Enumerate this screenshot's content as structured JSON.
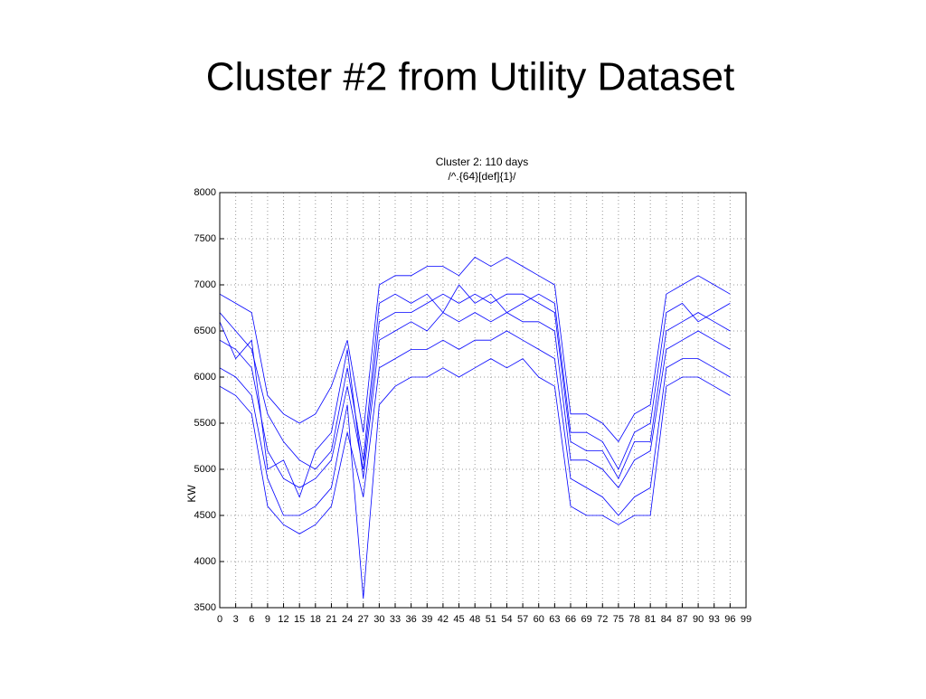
{
  "slide_title": "Cluster #2 from Utility Dataset",
  "chart_data": {
    "type": "line",
    "title": "Cluster 2: 110 days",
    "subtitle": "/^.{64}[def]{1}/",
    "y_label": "KW",
    "x": [
      0,
      3,
      6,
      9,
      12,
      15,
      18,
      21,
      24,
      27,
      30,
      33,
      36,
      39,
      42,
      45,
      48,
      51,
      54,
      57,
      60,
      63,
      66,
      69,
      72,
      75,
      78,
      81,
      84,
      87,
      90,
      93,
      96
    ],
    "xlim": [
      0,
      99
    ],
    "xticks": [
      0,
      3,
      6,
      9,
      12,
      15,
      18,
      21,
      24,
      27,
      30,
      33,
      36,
      39,
      42,
      45,
      48,
      51,
      54,
      57,
      60,
      63,
      66,
      69,
      72,
      75,
      78,
      81,
      84,
      87,
      90,
      93,
      96,
      99
    ],
    "ylim": [
      3500,
      8000
    ],
    "yticks": [
      3500,
      4000,
      4500,
      5000,
      5500,
      6000,
      6500,
      7000,
      7500,
      8000
    ],
    "grid": true,
    "series": [
      {
        "color": "#0000ff",
        "values": [
          6900,
          6800,
          6700,
          5800,
          5600,
          5500,
          5600,
          5900,
          6400,
          5400,
          7000,
          7100,
          7100,
          7200,
          7200,
          7100,
          7300,
          7200,
          7300,
          7200,
          7100,
          7000,
          5600,
          5600,
          5500,
          5300,
          5600,
          5700,
          6900,
          7000,
          7100,
          7000,
          6900
        ]
      },
      {
        "color": "#0000ff",
        "values": [
          6400,
          6300,
          6100,
          5200,
          4900,
          4800,
          4900,
          5100,
          5900,
          5000,
          6600,
          6700,
          6700,
          6800,
          6900,
          6800,
          6900,
          6800,
          6900,
          6900,
          6800,
          6700,
          5300,
          5200,
          5200,
          4900,
          5300,
          5300,
          6500,
          6600,
          6700,
          6600,
          6500
        ]
      },
      {
        "color": "#0000ff",
        "values": [
          5900,
          5800,
          5600,
          4600,
          4400,
          4300,
          4400,
          4600,
          5400,
          4700,
          6100,
          6200,
          6300,
          6300,
          6400,
          6300,
          6400,
          6400,
          6500,
          6400,
          6300,
          6200,
          4900,
          4800,
          4700,
          4500,
          4700,
          4800,
          6100,
          6200,
          6200,
          6100,
          6000
        ]
      },
      {
        "color": "#0000ff",
        "values": [
          6700,
          6500,
          6300,
          5600,
          5300,
          5100,
          5000,
          5200,
          6100,
          5100,
          6800,
          6900,
          6800,
          6900,
          6700,
          7000,
          6800,
          6900,
          6700,
          6800,
          6900,
          6800,
          5400,
          5400,
          5300,
          5000,
          5400,
          5500,
          6700,
          6800,
          6600,
          6700,
          6800
        ]
      },
      {
        "color": "#0000ff",
        "values": [
          6100,
          6000,
          5800,
          4900,
          4500,
          4500,
          4600,
          4800,
          5700,
          3600,
          5700,
          5900,
          6000,
          6000,
          6100,
          6000,
          6100,
          6200,
          6100,
          6200,
          6000,
          5900,
          4600,
          4500,
          4500,
          4400,
          4500,
          4500,
          5900,
          6000,
          6000,
          5900,
          5800
        ]
      },
      {
        "color": "#0000ff",
        "values": [
          6600,
          6200,
          6400,
          5000,
          5100,
          4700,
          5200,
          5400,
          6300,
          4900,
          6400,
          6500,
          6600,
          6500,
          6700,
          6600,
          6700,
          6600,
          6700,
          6600,
          6600,
          6500,
          5100,
          5100,
          5000,
          4800,
          5100,
          5200,
          6300,
          6400,
          6500,
          6400,
          6300
        ]
      }
    ]
  }
}
